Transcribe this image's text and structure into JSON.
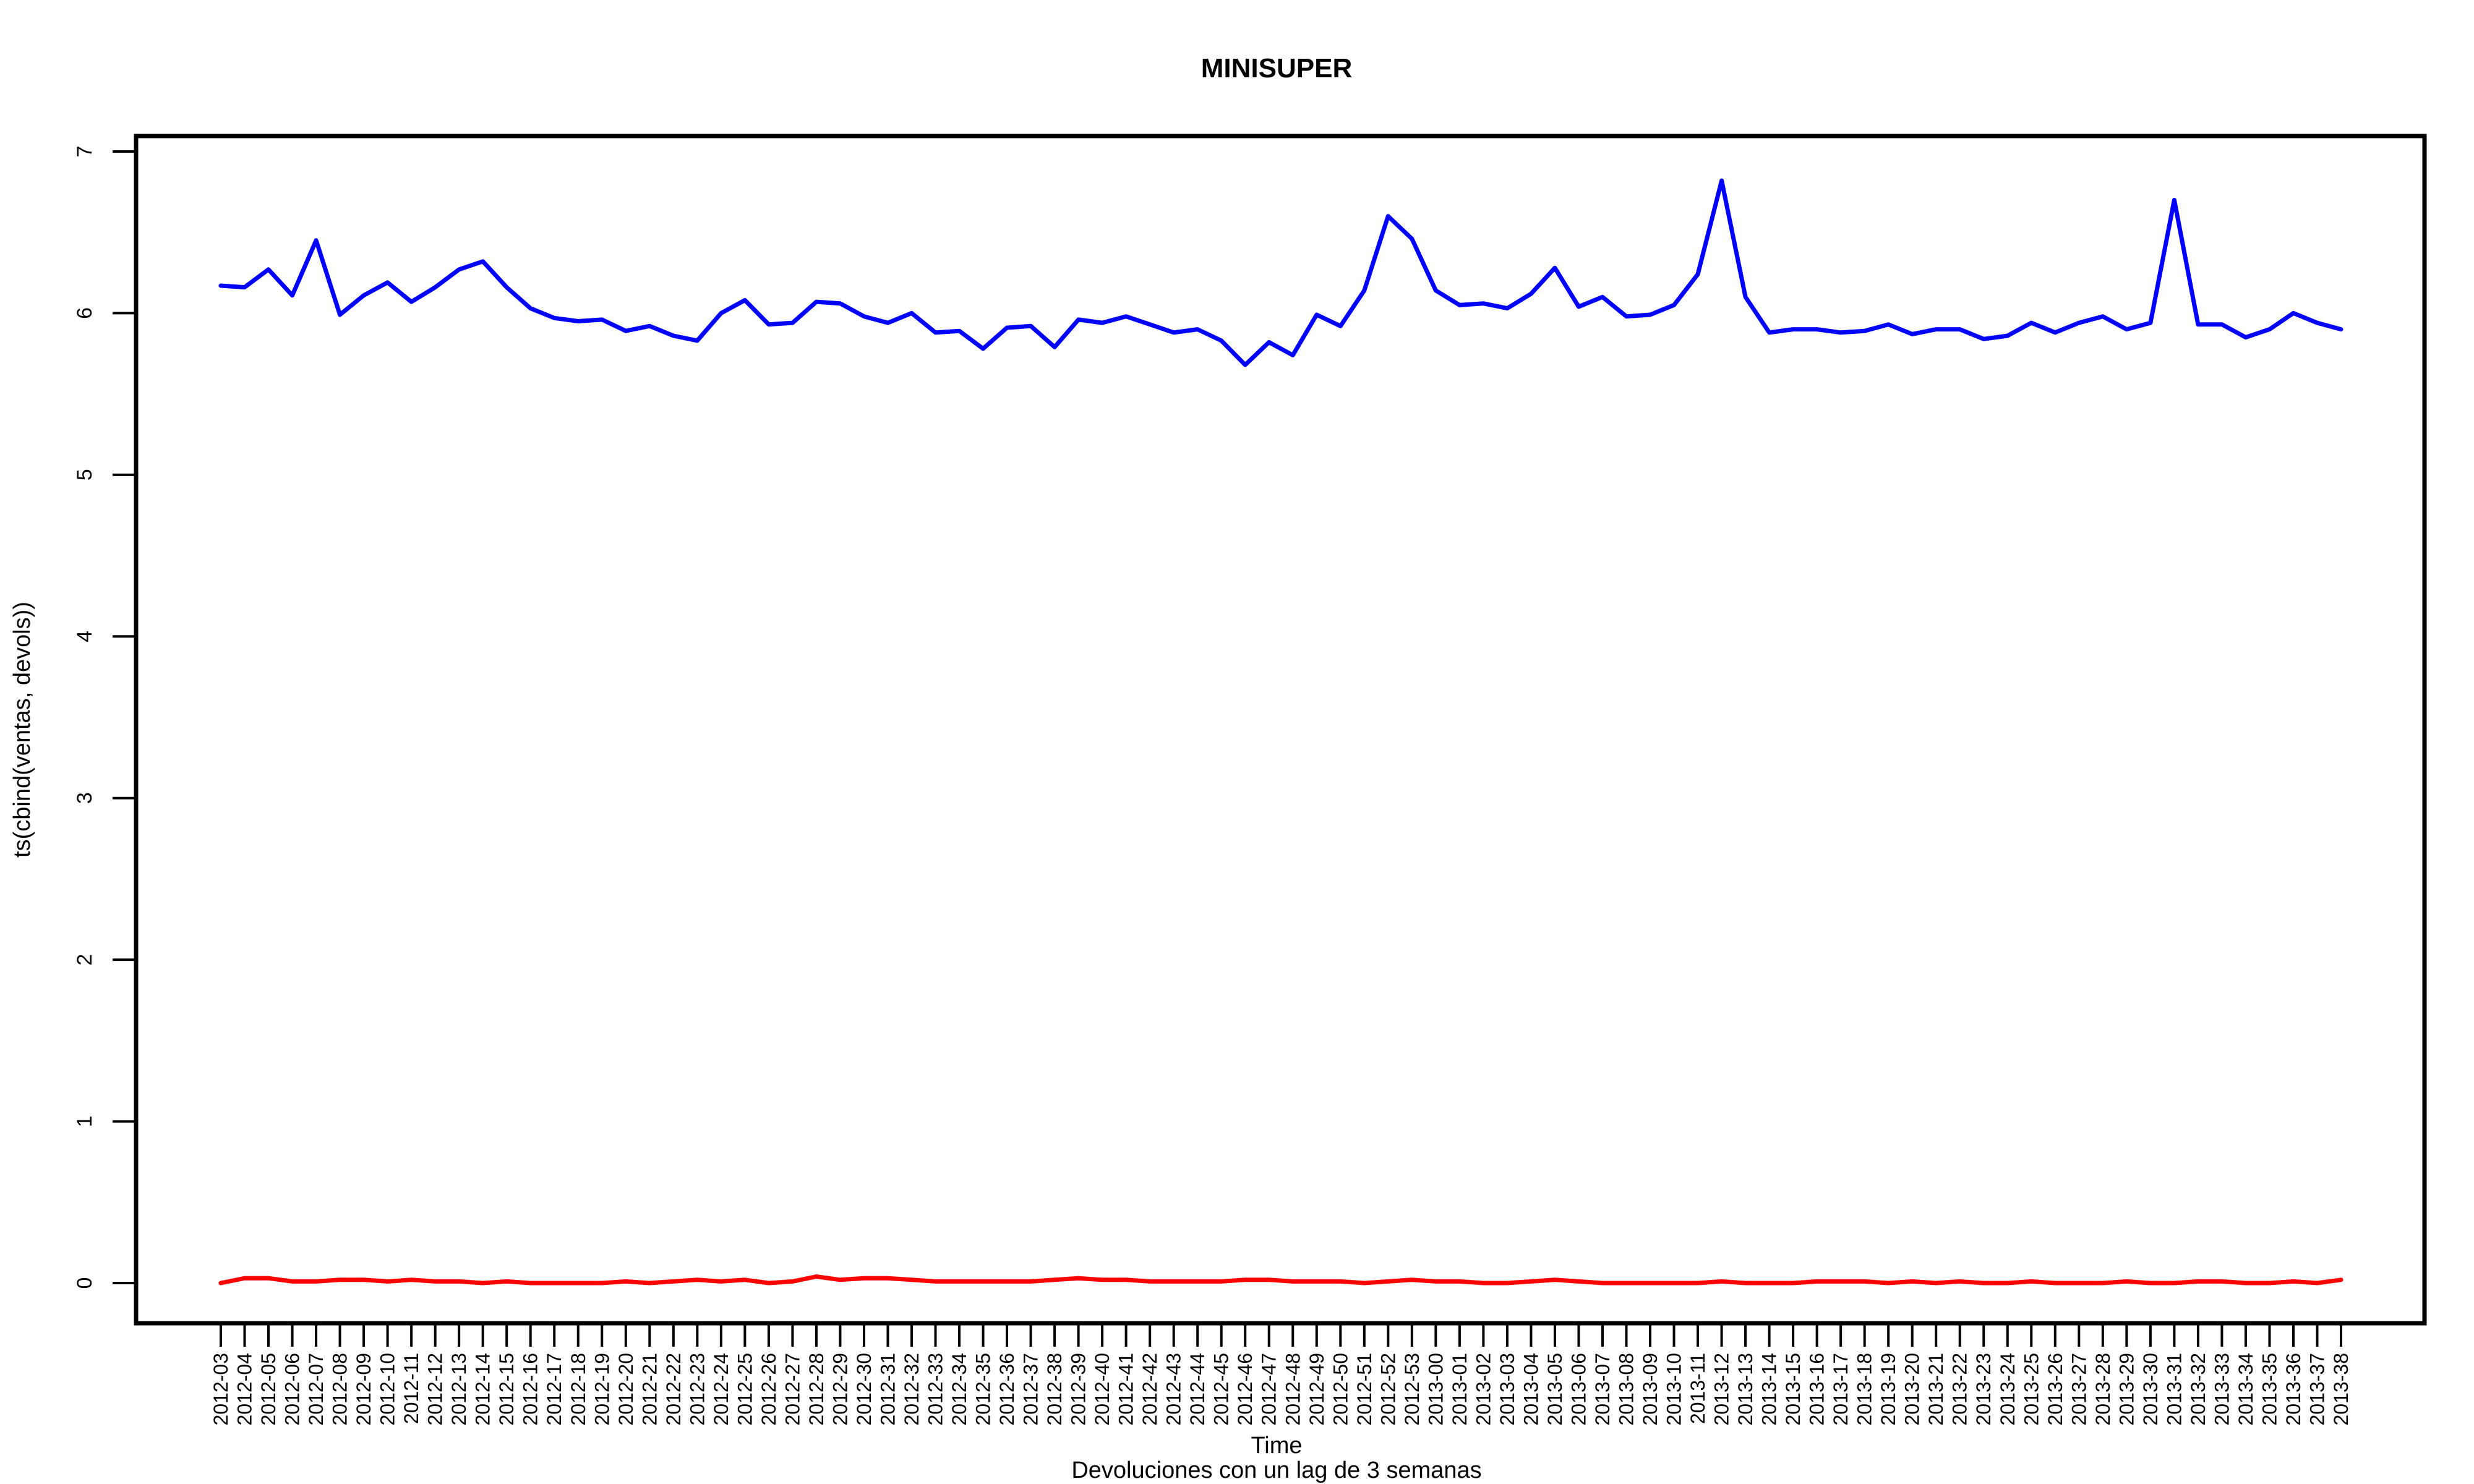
{
  "chart_data": {
    "type": "line",
    "title": "MINISUPER",
    "xlabel": "Time",
    "subtitle": "Devoluciones con un lag de 3 semanas",
    "ylabel": "ts(cbind(ventas, devols))",
    "ylim": [
      0,
      7
    ],
    "yticks": [
      0,
      1,
      2,
      3,
      4,
      5,
      6,
      7
    ],
    "grid": false,
    "legend": "none",
    "categories": [
      "2012-03",
      "2012-04",
      "2012-05",
      "2012-06",
      "2012-07",
      "2012-08",
      "2012-09",
      "2012-10",
      "2012-11",
      "2012-12",
      "2012-13",
      "2012-14",
      "2012-15",
      "2012-16",
      "2012-17",
      "2012-18",
      "2012-19",
      "2012-20",
      "2012-21",
      "2012-22",
      "2012-23",
      "2012-24",
      "2012-25",
      "2012-26",
      "2012-27",
      "2012-28",
      "2012-29",
      "2012-30",
      "2012-31",
      "2012-32",
      "2012-33",
      "2012-34",
      "2012-35",
      "2012-36",
      "2012-37",
      "2012-38",
      "2012-39",
      "2012-40",
      "2012-41",
      "2012-42",
      "2012-43",
      "2012-44",
      "2012-45",
      "2012-46",
      "2012-47",
      "2012-48",
      "2012-49",
      "2012-50",
      "2012-51",
      "2012-52",
      "2012-53",
      "2013-00",
      "2013-01",
      "2013-02",
      "2013-03",
      "2013-04",
      "2013-05",
      "2013-06",
      "2013-07",
      "2013-08",
      "2013-09",
      "2013-10",
      "2013-11",
      "2013-12",
      "2013-13",
      "2013-14",
      "2013-15",
      "2013-16",
      "2013-17",
      "2013-18",
      "2013-19",
      "2013-20",
      "2013-21",
      "2013-22",
      "2013-23",
      "2013-24",
      "2013-25",
      "2013-26",
      "2013-27",
      "2013-28",
      "2013-29",
      "2013-30",
      "2013-31",
      "2013-32",
      "2013-33",
      "2013-34",
      "2013-35",
      "2013-36",
      "2013-37",
      "2013-38"
    ],
    "series": [
      {
        "color": "#0000ff",
        "values": [
          6.17,
          6.16,
          6.27,
          6.11,
          6.45,
          5.99,
          6.11,
          6.19,
          6.07,
          6.16,
          6.27,
          6.32,
          6.16,
          6.03,
          5.97,
          5.95,
          5.96,
          5.89,
          5.92,
          5.86,
          5.83,
          6.0,
          6.08,
          5.93,
          5.94,
          6.07,
          6.06,
          5.98,
          5.94,
          6.0,
          5.88,
          5.89,
          5.78,
          5.91,
          5.92,
          5.79,
          5.96,
          5.94,
          5.98,
          5.93,
          5.88,
          5.9,
          5.83,
          5.68,
          5.82,
          5.74,
          5.99,
          5.92,
          6.14,
          6.6,
          6.46,
          6.14,
          6.05,
          6.06,
          6.03,
          6.12,
          6.28,
          6.04,
          6.1,
          5.98,
          5.99,
          6.05,
          6.24,
          6.82,
          6.1,
          5.88,
          5.9,
          5.9,
          5.88,
          5.89,
          5.93,
          5.87,
          5.9,
          5.9,
          5.84,
          5.86,
          5.94,
          5.88,
          5.94,
          5.98,
          5.9,
          5.94,
          6.7,
          5.93,
          5.93,
          5.85,
          5.9,
          6.0,
          5.94,
          5.9
        ]
      },
      {
        "color": "#ff0000",
        "values": [
          0.0,
          0.03,
          0.03,
          0.01,
          0.01,
          0.02,
          0.02,
          0.01,
          0.02,
          0.01,
          0.01,
          0.0,
          0.01,
          0.0,
          0.0,
          0.0,
          0.0,
          0.01,
          0.0,
          0.01,
          0.02,
          0.01,
          0.02,
          0.0,
          0.01,
          0.04,
          0.02,
          0.03,
          0.03,
          0.02,
          0.01,
          0.01,
          0.01,
          0.01,
          0.01,
          0.02,
          0.03,
          0.02,
          0.02,
          0.01,
          0.01,
          0.01,
          0.01,
          0.02,
          0.02,
          0.01,
          0.01,
          0.01,
          0.0,
          0.01,
          0.02,
          0.01,
          0.01,
          0.0,
          0.0,
          0.01,
          0.02,
          0.01,
          0.0,
          0.0,
          0.0,
          0.0,
          0.0,
          0.01,
          0.0,
          0.0,
          0.0,
          0.01,
          0.01,
          0.01,
          0.0,
          0.01,
          0.0,
          0.01,
          0.0,
          0.0,
          0.01,
          0.0,
          0.0,
          0.0,
          0.01,
          0.0,
          0.0,
          0.01,
          0.01,
          0.0,
          0.0,
          0.01,
          0.0,
          0.02
        ]
      }
    ]
  }
}
